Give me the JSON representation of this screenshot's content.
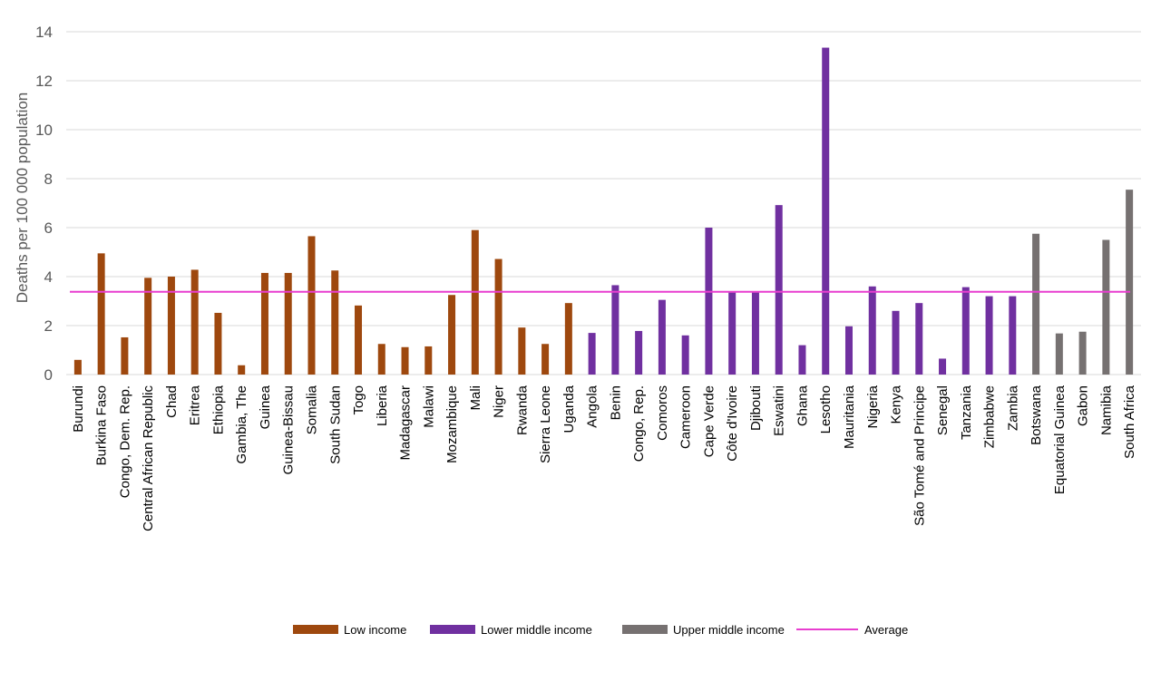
{
  "chart_data": {
    "type": "bar",
    "title": "",
    "ylabel": "Deaths per 100 000 population",
    "ylim": [
      0,
      14
    ],
    "yticks": [
      0,
      2,
      4,
      6,
      8,
      10,
      12,
      14
    ],
    "grid": "horizontal",
    "legend_position": "bottom",
    "categories": [
      "Burundi",
      "Burkina Faso",
      "Congo, Dem. Rep.",
      "Central African Republic",
      "Chad",
      "Eritrea",
      "Ethiopia",
      "Gambia, The",
      "Guinea",
      "Guinea-Bissau",
      "Somalia",
      "South Sudan",
      "Togo",
      "Liberia",
      "Madagascar",
      "Malawi",
      "Mozambique",
      "Mali",
      "Niger",
      "Rwanda",
      "Sierra Leone",
      "Uganda",
      "Angola",
      "Benin",
      "Congo, Rep.",
      "Comoros",
      "Cameroon",
      "Cape Verde",
      "Côte d'Ivoire",
      "Djibouti",
      "Eswatini",
      "Ghana",
      "Lesotho",
      "Mauritania",
      "Nigeria",
      "Kenya",
      "São Tomé and Principe",
      "Senegal",
      "Tanzania",
      "Zimbabwe",
      "Zambia",
      "Botswana",
      "Equatorial Guinea",
      "Gabon",
      "Namibia",
      "South Africa"
    ],
    "values": [
      0.6,
      4.95,
      1.52,
      3.95,
      4.0,
      4.28,
      2.52,
      0.38,
      4.15,
      4.15,
      5.65,
      4.25,
      2.82,
      1.25,
      1.12,
      1.15,
      3.25,
      5.9,
      4.72,
      1.92,
      1.25,
      2.92,
      1.7,
      3.65,
      1.78,
      3.05,
      1.6,
      6.0,
      3.35,
      3.35,
      6.92,
      1.2,
      13.35,
      1.97,
      3.6,
      2.6,
      2.92,
      0.65,
      3.57,
      3.2,
      3.2,
      5.75,
      1.68,
      1.75,
      5.5,
      7.55
    ],
    "groups": [
      "Low income",
      "Low income",
      "Low income",
      "Low income",
      "Low income",
      "Low income",
      "Low income",
      "Low income",
      "Low income",
      "Low income",
      "Low income",
      "Low income",
      "Low income",
      "Low income",
      "Low income",
      "Low income",
      "Low income",
      "Low income",
      "Low income",
      "Low income",
      "Low income",
      "Low income",
      "Lower middle income",
      "Lower middle income",
      "Lower middle income",
      "Lower middle income",
      "Lower middle income",
      "Lower middle income",
      "Lower middle income",
      "Lower middle income",
      "Lower middle income",
      "Lower middle income",
      "Lower middle income",
      "Lower middle income",
      "Lower middle income",
      "Lower middle income",
      "Lower middle income",
      "Lower middle income",
      "Lower middle income",
      "Lower middle income",
      "Lower middle income",
      "Upper middle income",
      "Upper middle income",
      "Upper middle income",
      "Upper middle income",
      "Upper middle income"
    ],
    "average": 3.38,
    "colors": {
      "Low income": "#9e480e",
      "Lower middle income": "#7030a0",
      "Upper middle income": "#767171",
      "Average": "#e83ecf",
      "grid": "#d9d9d9"
    },
    "legend": [
      {
        "name": "Low income",
        "kind": "bar"
      },
      {
        "name": "Lower middle income",
        "kind": "bar"
      },
      {
        "name": "Upper middle income",
        "kind": "bar"
      },
      {
        "name": "Average",
        "kind": "line"
      }
    ]
  }
}
